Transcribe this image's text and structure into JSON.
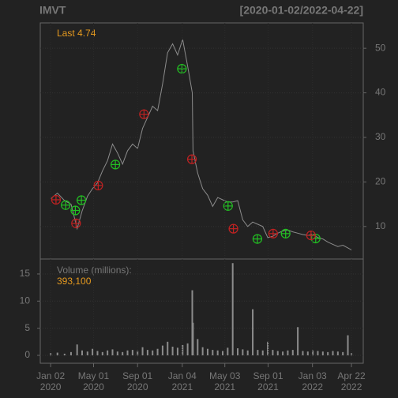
{
  "chart_data": [
    {
      "type": "line",
      "title": "IMVT",
      "subtitle": "[2020-01-02/2022-04-22]",
      "annotation": "Last 4.74",
      "x": [
        "2020-01-02",
        "2020-01-21",
        "2020-02-10",
        "2020-02-28",
        "2020-03-16",
        "2020-03-30",
        "2020-04-14",
        "2020-04-28",
        "2020-05-12",
        "2020-05-26",
        "2020-06-09",
        "2020-06-23",
        "2020-07-07",
        "2020-07-21",
        "2020-08-04",
        "2020-08-18",
        "2020-09-01",
        "2020-09-15",
        "2020-09-29",
        "2020-10-13",
        "2020-10-27",
        "2020-11-10",
        "2020-11-24",
        "2020-12-08",
        "2020-12-22",
        "2021-01-05",
        "2021-01-19",
        "2021-02-01",
        "2021-02-03",
        "2021-02-16",
        "2021-03-02",
        "2021-03-16",
        "2021-03-30",
        "2021-04-13",
        "2021-04-27",
        "2021-05-11",
        "2021-05-25",
        "2021-06-08",
        "2021-06-22",
        "2021-07-06",
        "2021-07-20",
        "2021-08-03",
        "2021-08-17",
        "2021-08-31",
        "2021-09-14",
        "2021-09-28",
        "2021-10-12",
        "2021-10-26",
        "2021-11-09",
        "2021-11-23",
        "2021-12-07",
        "2021-12-21",
        "2022-01-04",
        "2022-01-18",
        "2022-02-01",
        "2022-02-15",
        "2022-03-01",
        "2022-03-15",
        "2022-03-29",
        "2022-04-12",
        "2022-04-22"
      ],
      "values": [
        16.2,
        17.5,
        15.8,
        15.0,
        9.5,
        13.5,
        16.8,
        18.5,
        19.8,
        22.5,
        24.8,
        28.5,
        26.5,
        24.0,
        27.0,
        28.5,
        27.5,
        32.0,
        34.5,
        37.0,
        36.0,
        42.0,
        49.0,
        51.0,
        48.5,
        52.0,
        46.0,
        40.0,
        27.0,
        22.0,
        18.5,
        17.0,
        14.5,
        16.5,
        16.0,
        15.5,
        15.5,
        15.8,
        11.5,
        10.0,
        11.0,
        10.5,
        10.0,
        7.5,
        7.8,
        8.5,
        9.0,
        9.2,
        8.8,
        8.5,
        8.2,
        8.0,
        8.3,
        7.5,
        7.2,
        6.5,
        6.0,
        5.5,
        5.8,
        5.2,
        4.74
      ],
      "color": "#8c8c8c",
      "xlim": [
        "2019-12-04",
        "2022-05-25"
      ],
      "ylim": [
        2.7,
        55.7
      ],
      "yticks": [
        10,
        20,
        30,
        40,
        50
      ],
      "grid": true,
      "buy": {
        "color": "#22c022",
        "x": [
          "2020-02-13",
          "2020-03-11",
          "2020-03-28",
          "2020-07-01",
          "2021-01-03",
          "2021-05-12",
          "2021-08-02",
          "2021-10-20",
          "2022-01-12"
        ],
        "values": [
          14.8,
          13.6,
          15.9,
          23.9,
          45.4,
          14.6,
          7.2,
          8.4,
          7.3
        ]
      },
      "sell": {
        "color": "#c02222",
        "x": [
          "2020-01-17",
          "2020-03-13",
          "2020-05-14",
          "2020-09-19",
          "2021-01-31",
          "2021-05-27",
          "2021-09-15",
          "2021-12-30"
        ],
        "values": [
          16.0,
          10.7,
          19.2,
          35.2,
          25.1,
          9.5,
          8.4,
          8.0
        ]
      }
    },
    {
      "type": "bar",
      "title": "Volume (millions):",
      "annotation": "393,100",
      "x": [
        "2020-01-02",
        "2020-01-21",
        "2020-02-10",
        "2020-02-28",
        "2020-03-16",
        "2020-03-30",
        "2020-04-14",
        "2020-04-28",
        "2020-05-12",
        "2020-05-26",
        "2020-06-09",
        "2020-06-23",
        "2020-07-07",
        "2020-07-21",
        "2020-08-04",
        "2020-08-18",
        "2020-09-01",
        "2020-09-15",
        "2020-09-29",
        "2020-10-13",
        "2020-10-27",
        "2020-11-10",
        "2020-11-24",
        "2020-12-08",
        "2020-12-22",
        "2021-01-05",
        "2021-01-19",
        "2021-02-01",
        "2021-02-03",
        "2021-02-16",
        "2021-03-02",
        "2021-03-16",
        "2021-03-30",
        "2021-04-13",
        "2021-04-27",
        "2021-05-11",
        "2021-05-25",
        "2021-06-08",
        "2021-06-22",
        "2021-07-06",
        "2021-07-20",
        "2021-08-03",
        "2021-08-17",
        "2021-08-31",
        "2021-09-14",
        "2021-09-28",
        "2021-10-12",
        "2021-10-26",
        "2021-11-09",
        "2021-11-23",
        "2021-12-07",
        "2021-12-21",
        "2022-01-04",
        "2022-01-18",
        "2022-02-01",
        "2022-02-15",
        "2022-03-01",
        "2022-03-15",
        "2022-03-29",
        "2022-04-12",
        "2022-04-22"
      ],
      "values": [
        0.4,
        0.5,
        0.3,
        0.6,
        2.0,
        0.9,
        0.7,
        1.2,
        0.8,
        0.6,
        0.9,
        1.1,
        0.7,
        0.6,
        0.9,
        1.0,
        0.8,
        1.5,
        1.0,
        0.9,
        1.2,
        1.8,
        2.5,
        1.6,
        1.4,
        1.9,
        2.2,
        12.0,
        6.0,
        3.0,
        1.5,
        1.2,
        1.0,
        0.9,
        0.8,
        1.4,
        17.0,
        1.3,
        1.1,
        0.9,
        8.5,
        1.0,
        0.9,
        2.5,
        1.0,
        0.8,
        0.7,
        0.9,
        1.0,
        5.2,
        0.8,
        0.7,
        0.9,
        0.8,
        0.7,
        0.6,
        0.8,
        0.7,
        0.6,
        3.7,
        0.3931
      ],
      "color": "#8c8c8c",
      "xlim": [
        "2019-12-04",
        "2022-05-25"
      ],
      "ylim": [
        -1.46,
        17.76
      ],
      "yticks": [
        0,
        5,
        10,
        15
      ],
      "grid": true,
      "xticks": [
        {
          "value": "2020-01-02",
          "label": "Jan 02\n2020"
        },
        {
          "value": "2020-05-01",
          "label": "May 01\n2020"
        },
        {
          "value": "2020-09-01",
          "label": "Sep 01\n2020"
        },
        {
          "value": "2021-01-04",
          "label": "Jan 04\n2021"
        },
        {
          "value": "2021-05-03",
          "label": "May 03\n2021"
        },
        {
          "value": "2021-09-01",
          "label": "Sep 01\n2021"
        },
        {
          "value": "2022-01-03",
          "label": "Jan 03\n2022"
        },
        {
          "value": "2022-04-22",
          "label": "Apr 22\n2022"
        }
      ]
    }
  ]
}
